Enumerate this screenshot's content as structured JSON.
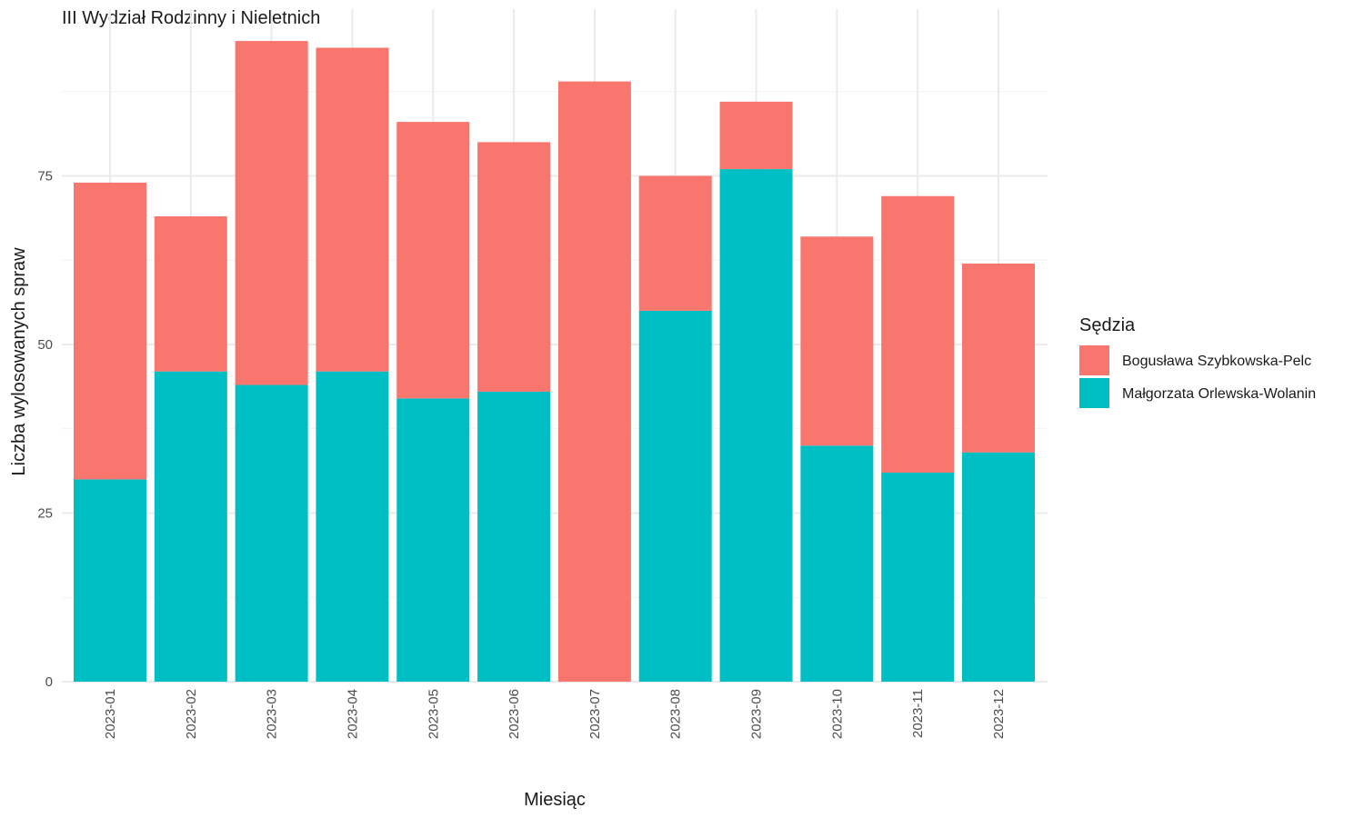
{
  "chart_data": {
    "type": "bar",
    "stacked": true,
    "title": "III Wydział Rodzinny i Nieletnich",
    "xlabel": "Miesiąc",
    "ylabel": "Liczba wylosowanych spraw",
    "categories": [
      "2023-01",
      "2023-02",
      "2023-03",
      "2023-04",
      "2023-05",
      "2023-06",
      "2023-07",
      "2023-08",
      "2023-09",
      "2023-10",
      "2023-11",
      "2023-12"
    ],
    "yticks": [
      0,
      25,
      50,
      75
    ],
    "ylim": [
      0,
      98
    ],
    "grid": true,
    "legend": {
      "title": "Sędzia",
      "position": "right"
    },
    "series": [
      {
        "name": "Małgorzata Orlewska-Wolanin",
        "color": "#00BFC4",
        "values": [
          30,
          46,
          44,
          46,
          42,
          43,
          0,
          55,
          76,
          35,
          31,
          34
        ]
      },
      {
        "name": "Bogusława Szybkowska-Pelc",
        "color": "#F8766D",
        "values": [
          44,
          23,
          51,
          48,
          41,
          37,
          89,
          20,
          10,
          31,
          41,
          28
        ]
      }
    ],
    "legend_order": [
      "Bogusława Szybkowska-Pelc",
      "Małgorzata Orlewska-Wolanin"
    ]
  }
}
